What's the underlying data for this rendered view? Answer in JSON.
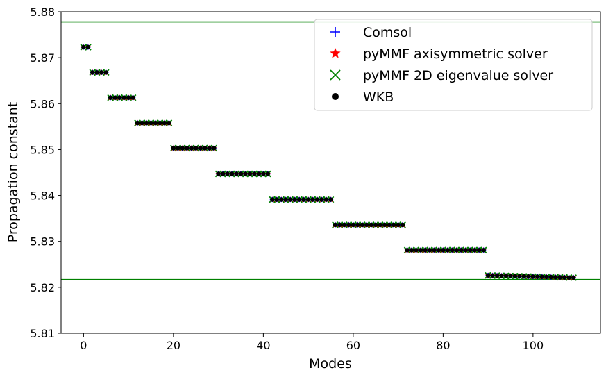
{
  "chart_data": {
    "type": "scatter",
    "xlabel": "Modes",
    "ylabel": "Propagation constant",
    "xlim": [
      -5,
      115
    ],
    "ylim": [
      5.81,
      5.88
    ],
    "xticks": [
      0,
      20,
      40,
      60,
      80,
      100
    ],
    "yticks": [
      5.81,
      5.82,
      5.83,
      5.84,
      5.85,
      5.86,
      5.87,
      5.88
    ],
    "grid": false,
    "legend": "top-right",
    "reference_lines": [
      {
        "y": 5.8778,
        "color": "#008000"
      },
      {
        "y": 5.8217,
        "color": "#008000"
      }
    ],
    "mode_groups": [
      {
        "start": 0,
        "count": 2,
        "beta": 5.8723
      },
      {
        "start": 2,
        "count": 4,
        "beta": 5.8668
      },
      {
        "start": 6,
        "count": 6,
        "beta": 5.8613
      },
      {
        "start": 12,
        "count": 8,
        "beta": 5.8558
      },
      {
        "start": 20,
        "count": 10,
        "beta": 5.8503
      },
      {
        "start": 30,
        "count": 12,
        "beta": 5.8447
      },
      {
        "start": 42,
        "count": 14,
        "beta": 5.8391
      },
      {
        "start": 56,
        "count": 16,
        "beta": 5.8336
      },
      {
        "start": 72,
        "count": 18,
        "beta": 5.8281
      },
      {
        "start": 90,
        "count": 20,
        "beta": 5.8226
      }
    ],
    "series": [
      {
        "name": "Comsol",
        "marker": "plus",
        "color": "#0000ff"
      },
      {
        "name": "pyMMF axisymmetric solver",
        "marker": "star",
        "color": "#ff0000"
      },
      {
        "name": "pyMMF 2D eigenvalue solver",
        "marker": "x",
        "color": "#008000"
      },
      {
        "name": "WKB",
        "marker": "dot",
        "color": "#000000"
      }
    ]
  }
}
